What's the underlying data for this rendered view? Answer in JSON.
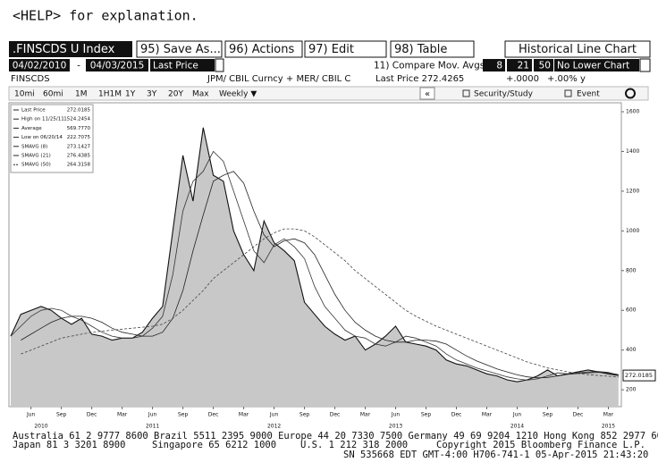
{
  "help": "<HELP> for explanation.",
  "header": {
    "ticker": ".FINSCDS U Index",
    "menu": [
      "95) Save As...",
      "96) Actions",
      "97) Edit",
      "98) Table"
    ],
    "view": "Historical Line Chart"
  },
  "range": {
    "start": "04/02/2010",
    "sep": "-",
    "end": "04/03/2015",
    "field": "Last Price",
    "compare": "11) Compare Mov. Avgs",
    "mavgs": [
      "8",
      "21",
      "50"
    ],
    "lower": "No Lower Chart"
  },
  "info": {
    "name": "FINSCDS",
    "formula": "JPM/ CBIL Curncy + MER/ CBIL C",
    "last": "Last Price 272.4265",
    "change": "+.0000",
    "pct": "+.00% y"
  },
  "toolbar": {
    "periods": [
      "10mi",
      "60mi",
      "1M",
      "1H1M",
      "1Y",
      "3Y",
      "20Y",
      "Max"
    ],
    "freq": "Weekly ▼",
    "back": "«",
    "study": "Security/Study",
    "event": "Event"
  },
  "chart_data": {
    "type": "line",
    "x": [
      "2010-04",
      "2010-05",
      "2010-06",
      "2010-07",
      "2010-08",
      "2010-09",
      "2010-10",
      "2010-11",
      "2010-12",
      "2011-01",
      "2011-02",
      "2011-03",
      "2011-04",
      "2011-05",
      "2011-06",
      "2011-07",
      "2011-08",
      "2011-09",
      "2011-10",
      "2011-11",
      "2011-12",
      "2012-01",
      "2012-02",
      "2012-03",
      "2012-04",
      "2012-05",
      "2012-06",
      "2012-07",
      "2012-08",
      "2012-09",
      "2012-10",
      "2012-11",
      "2012-12",
      "2013-01",
      "2013-02",
      "2013-03",
      "2013-04",
      "2013-05",
      "2013-06",
      "2013-07",
      "2013-08",
      "2013-09",
      "2013-10",
      "2013-11",
      "2013-12",
      "2014-01",
      "2014-02",
      "2014-03",
      "2014-04",
      "2014-05",
      "2014-06",
      "2014-07",
      "2014-08",
      "2014-09",
      "2014-10",
      "2014-11",
      "2014-12",
      "2015-01",
      "2015-02",
      "2015-03",
      "2015-04"
    ],
    "series": [
      {
        "name": "Last Price",
        "last_label": "272.0185",
        "color": "#111111",
        "fill": "#c8c8c8",
        "style": "solid",
        "values": [
          470,
          580,
          600,
          620,
          600,
          560,
          530,
          560,
          480,
          470,
          450,
          460,
          460,
          490,
          560,
          620,
          1000,
          1380,
          1150,
          1520,
          1280,
          1250,
          1000,
          880,
          800,
          1050,
          940,
          900,
          850,
          640,
          580,
          520,
          480,
          450,
          470,
          400,
          430,
          470,
          520,
          440,
          430,
          420,
          400,
          350,
          330,
          320,
          300,
          280,
          270,
          250,
          240,
          250,
          270,
          300,
          270,
          280,
          290,
          300,
          290,
          280,
          272
        ]
      },
      {
        "name": "SMAVG (8)",
        "last_label": "273.1427",
        "color": "#333333",
        "style": "solid",
        "values": [
          470,
          520,
          570,
          600,
          610,
          600,
          570,
          550,
          520,
          490,
          470,
          460,
          460,
          470,
          510,
          570,
          780,
          1100,
          1250,
          1300,
          1400,
          1350,
          1200,
          1050,
          900,
          840,
          930,
          960,
          920,
          860,
          720,
          620,
          560,
          500,
          470,
          460,
          430,
          420,
          440,
          470,
          460,
          440,
          420,
          380,
          350,
          330,
          310,
          295,
          280,
          265,
          255,
          248,
          255,
          270,
          285,
          280,
          285,
          290,
          292,
          288,
          273
        ]
      },
      {
        "name": "SMAVG (21)",
        "last_label": "276.4385",
        "color": "#222222",
        "style": "solid",
        "values": [
          null,
          450,
          480,
          510,
          540,
          560,
          570,
          570,
          560,
          540,
          510,
          490,
          480,
          470,
          470,
          490,
          560,
          700,
          900,
          1080,
          1250,
          1280,
          1300,
          1240,
          1100,
          980,
          920,
          950,
          960,
          940,
          880,
          780,
          680,
          600,
          540,
          500,
          470,
          450,
          440,
          440,
          450,
          450,
          445,
          430,
          400,
          370,
          345,
          325,
          305,
          290,
          275,
          265,
          260,
          262,
          270,
          278,
          282,
          285,
          288,
          285,
          276
        ]
      },
      {
        "name": "SMAVG (50)",
        "last_label": "264.3158",
        "color": "#444444",
        "style": "dashed",
        "values": [
          null,
          380,
          400,
          420,
          440,
          460,
          470,
          480,
          490,
          495,
          500,
          505,
          510,
          515,
          520,
          530,
          560,
          600,
          650,
          700,
          760,
          800,
          840,
          880,
          920,
          960,
          990,
          1010,
          1010,
          1000,
          970,
          930,
          890,
          850,
          800,
          760,
          720,
          680,
          640,
          600,
          570,
          545,
          520,
          500,
          480,
          460,
          440,
          420,
          400,
          380,
          360,
          340,
          325,
          310,
          300,
          290,
          282,
          276,
          272,
          268,
          264
        ]
      }
    ],
    "stats": [
      {
        "label": "High on 11/25/11",
        "value": "1524.2454"
      },
      {
        "label": "Average",
        "value": "569.7770"
      },
      {
        "label": "Low on 06/20/14",
        "value": "222.7075"
      }
    ],
    "last_value": 272.0185,
    "ylim": [
      115,
      1645
    ],
    "yticks": [
      200,
      400,
      600,
      800,
      1000,
      1200,
      1400,
      1600
    ],
    "xticks": [
      {
        "value": "2010-06",
        "label": "Jun"
      },
      {
        "value": "2010-09",
        "label": "Sep"
      },
      {
        "value": "2010-12",
        "label": "Dec"
      },
      {
        "value": "2011-03",
        "label": "Mar"
      },
      {
        "value": "2011-06",
        "label": "Jun"
      },
      {
        "value": "2011-09",
        "label": "Sep"
      },
      {
        "value": "2011-12",
        "label": "Dec"
      },
      {
        "value": "2012-03",
        "label": "Mar"
      },
      {
        "value": "2012-06",
        "label": "Jun"
      },
      {
        "value": "2012-09",
        "label": "Sep"
      },
      {
        "value": "2012-12",
        "label": "Dec"
      },
      {
        "value": "2013-03",
        "label": "Mar"
      },
      {
        "value": "2013-06",
        "label": "Jun"
      },
      {
        "value": "2013-09",
        "label": "Sep"
      },
      {
        "value": "2013-12",
        "label": "Dec"
      },
      {
        "value": "2014-03",
        "label": "Mar"
      },
      {
        "value": "2014-06",
        "label": "Jun"
      },
      {
        "value": "2014-09",
        "label": "Sep"
      },
      {
        "value": "2014-12",
        "label": "Dec"
      },
      {
        "value": "2015-03",
        "label": "Mar"
      }
    ],
    "year_labels": [
      {
        "value": "2010-07",
        "label": "2010"
      },
      {
        "value": "2011-06",
        "label": "2011"
      },
      {
        "value": "2012-06",
        "label": "2012"
      },
      {
        "value": "2013-06",
        "label": "2013"
      },
      {
        "value": "2014-06",
        "label": "2014"
      },
      {
        "value": "2015-03",
        "label": "2015"
      }
    ]
  },
  "footer": {
    "line1": "Australia 61 2 9777 8600 Brazil 5511 2395 9000 Europe 44 20 7330 7500 Germany 49 69 9204 1210 Hong Kong 852 2977 6000",
    "japan": "Japan 81 3 3201 8900",
    "singapore": "Singapore 65 6212 1000",
    "us": "U.S. 1 212 318 2000",
    "copyright": "Copyright 2015 Bloomberg Finance L.P.",
    "line3": "SN 535668 EDT  GMT-4:00 H706-741-1 05-Apr-2015 21:43:20"
  }
}
